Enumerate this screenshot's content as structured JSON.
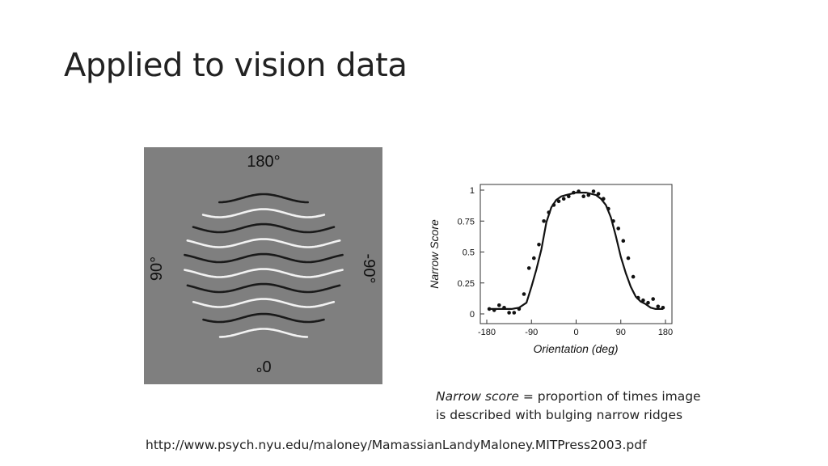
{
  "slide": {
    "title": "Applied to vision data",
    "caption_term": "Narrow score",
    "caption_rest": " = proportion of times image is described with bulging narrow ridges",
    "source_url": "http://www.psych.nyu.edu/maloney/MamassianLandyMaloney.MITPress2003.pdf"
  },
  "stimulus": {
    "labels": {
      "top": "180°",
      "bottom": "0°",
      "left": "90°",
      "right": "-90°"
    },
    "background_color": "#7f7f7f",
    "dark_ridge_color": "#1a1a1a",
    "light_ridge_color": "#f2f2f2"
  },
  "chart_data": {
    "type": "scatter",
    "title": "",
    "xlabel": "Orientation (deg)",
    "ylabel": "Narrow Score",
    "xlim": [
      -180,
      180
    ],
    "ylim": [
      0,
      1
    ],
    "x_ticks": [
      -180,
      -90,
      0,
      90,
      180
    ],
    "y_ticks": [
      0,
      0.25,
      0.5,
      0.75,
      1
    ],
    "grid": false,
    "legend": "none",
    "points": {
      "x": [
        -175,
        -165,
        -155,
        -145,
        -135,
        -125,
        -115,
        -105,
        -95,
        -85,
        -75,
        -65,
        -55,
        -45,
        -35,
        -25,
        -15,
        -5,
        5,
        15,
        25,
        35,
        45,
        55,
        65,
        75,
        85,
        95,
        105,
        115,
        125,
        135,
        145,
        155,
        165,
        175
      ],
      "y": [
        0.04,
        0.03,
        0.07,
        0.05,
        0.01,
        0.01,
        0.04,
        0.16,
        0.37,
        0.45,
        0.56,
        0.75,
        0.82,
        0.88,
        0.91,
        0.93,
        0.95,
        0.98,
        0.99,
        0.95,
        0.96,
        0.99,
        0.97,
        0.93,
        0.85,
        0.75,
        0.69,
        0.59,
        0.45,
        0.3,
        0.13,
        0.11,
        0.09,
        0.12,
        0.06,
        0.05
      ]
    },
    "fit_line": {
      "x": [
        -175,
        -160,
        -145,
        -130,
        -115,
        -100,
        -90,
        -80,
        -70,
        -60,
        -50,
        -40,
        -30,
        -20,
        -10,
        0,
        10,
        20,
        30,
        40,
        50,
        60,
        70,
        80,
        90,
        100,
        110,
        120,
        130,
        140,
        150,
        160,
        175
      ],
      "y": [
        0.04,
        0.04,
        0.04,
        0.04,
        0.05,
        0.09,
        0.22,
        0.36,
        0.52,
        0.74,
        0.86,
        0.92,
        0.95,
        0.96,
        0.97,
        0.98,
        0.98,
        0.98,
        0.97,
        0.96,
        0.93,
        0.88,
        0.78,
        0.63,
        0.46,
        0.33,
        0.22,
        0.14,
        0.1,
        0.08,
        0.05,
        0.04,
        0.04
      ]
    },
    "colors": {
      "points": "#111111",
      "line": "#111111"
    }
  }
}
